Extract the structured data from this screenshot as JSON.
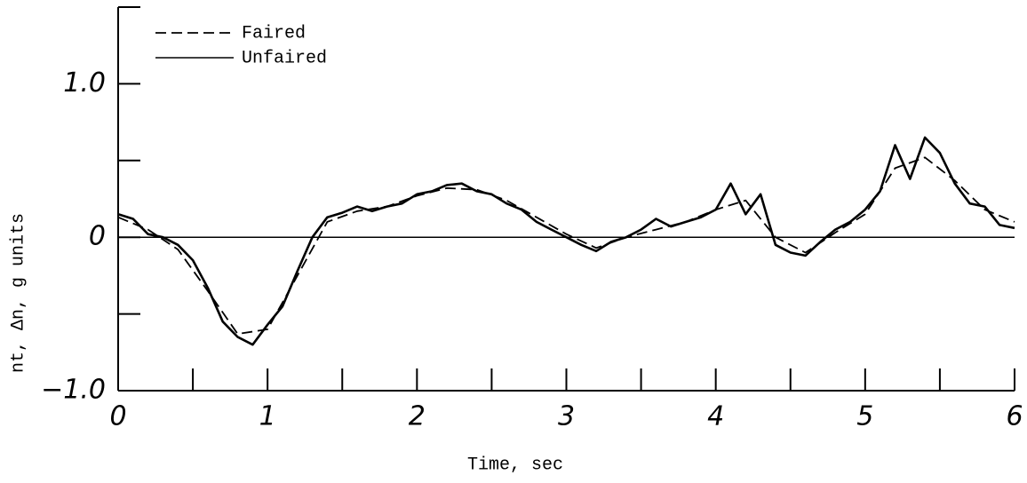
{
  "chart_data": {
    "type": "line",
    "xlabel": "Time, sec",
    "ylabel": "nt, Δn, g units",
    "xlim": [
      0,
      6
    ],
    "ylim": [
      -1,
      1.5
    ],
    "xticks": [
      0,
      1,
      2,
      3,
      4,
      5,
      6
    ],
    "xminor_ticks": [
      0.5,
      1.5,
      2.5,
      3.5,
      4.5,
      5.5
    ],
    "yticks": [
      {
        "value": -1,
        "label": "−1.0"
      },
      0,
      {
        "value": 1,
        "label": "1.0"
      }
    ],
    "yminor_ticks": [
      -0.5,
      0.5,
      1.5
    ],
    "zero_line": true,
    "legend": "upper left",
    "series": [
      {
        "name": "Faired",
        "color": "#000000",
        "dash": true,
        "x": [
          0,
          0.2,
          0.4,
          0.6,
          0.8,
          1.0,
          1.2,
          1.4,
          1.6,
          1.8,
          2.0,
          2.2,
          2.4,
          2.6,
          2.8,
          3.0,
          3.2,
          3.4,
          3.6,
          3.8,
          4.0,
          4.2,
          4.4,
          4.6,
          4.8,
          5.0,
          5.2,
          5.4,
          5.6,
          5.8,
          6.0
        ],
        "values": [
          0.13,
          0.05,
          -0.08,
          -0.35,
          -0.63,
          -0.6,
          -0.25,
          0.1,
          0.17,
          0.2,
          0.27,
          0.32,
          0.31,
          0.24,
          0.13,
          0.02,
          -0.07,
          0.0,
          0.05,
          0.1,
          0.18,
          0.24,
          0.0,
          -0.1,
          0.03,
          0.15,
          0.45,
          0.52,
          0.37,
          0.18,
          0.1
        ]
      },
      {
        "name": "Unfaired",
        "color": "#000000",
        "dash": false,
        "x": [
          0,
          0.1,
          0.2,
          0.3,
          0.4,
          0.5,
          0.6,
          0.7,
          0.8,
          0.9,
          1.0,
          1.1,
          1.2,
          1.3,
          1.4,
          1.5,
          1.6,
          1.7,
          1.8,
          1.9,
          2.0,
          2.1,
          2.2,
          2.3,
          2.4,
          2.5,
          2.6,
          2.7,
          2.8,
          2.9,
          3.0,
          3.1,
          3.2,
          3.3,
          3.4,
          3.5,
          3.6,
          3.7,
          3.8,
          3.9,
          4.0,
          4.1,
          4.2,
          4.3,
          4.4,
          4.5,
          4.6,
          4.7,
          4.8,
          4.9,
          5.0,
          5.1,
          5.2,
          5.3,
          5.4,
          5.5,
          5.6,
          5.7,
          5.8,
          5.9,
          6.0
        ],
        "values": [
          0.15,
          0.12,
          0.02,
          0.0,
          -0.05,
          -0.15,
          -0.33,
          -0.55,
          -0.65,
          -0.7,
          -0.57,
          -0.45,
          -0.22,
          0.0,
          0.13,
          0.16,
          0.2,
          0.17,
          0.2,
          0.22,
          0.28,
          0.3,
          0.34,
          0.35,
          0.3,
          0.28,
          0.22,
          0.18,
          0.1,
          0.05,
          0.0,
          -0.05,
          -0.09,
          -0.03,
          0.0,
          0.05,
          0.12,
          0.07,
          0.1,
          0.13,
          0.18,
          0.35,
          0.15,
          0.28,
          -0.05,
          -0.1,
          -0.12,
          -0.03,
          0.05,
          0.1,
          0.18,
          0.3,
          0.6,
          0.38,
          0.65,
          0.55,
          0.35,
          0.22,
          0.2,
          0.08,
          0.06
        ]
      }
    ]
  }
}
